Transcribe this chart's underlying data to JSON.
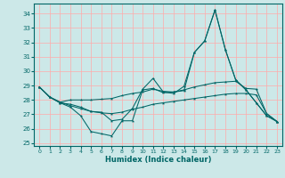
{
  "xlabel": "Humidex (Indice chaleur)",
  "background_color": "#cce8e8",
  "grid_color": "#ffaaaa",
  "line_color": "#006666",
  "x_values": [
    0,
    1,
    2,
    3,
    4,
    5,
    6,
    7,
    8,
    9,
    10,
    11,
    12,
    13,
    14,
    15,
    16,
    17,
    18,
    19,
    20,
    21,
    22,
    23
  ],
  "ylim": [
    24.8,
    34.7
  ],
  "yticks": [
    25,
    26,
    27,
    28,
    29,
    30,
    31,
    32,
    33,
    34
  ],
  "xlim": [
    -0.5,
    23.5
  ],
  "line1_sharp": [
    28.9,
    28.2,
    27.8,
    27.5,
    26.9,
    25.8,
    25.65,
    25.5,
    26.55,
    26.55,
    28.7,
    28.8,
    28.5,
    28.55,
    28.65,
    31.3,
    32.1,
    34.25,
    31.5,
    29.4,
    28.7,
    27.8,
    26.9,
    26.5
  ],
  "line2_mid": [
    28.9,
    28.2,
    27.8,
    27.7,
    27.5,
    27.2,
    27.15,
    26.55,
    26.65,
    27.4,
    28.75,
    29.5,
    28.55,
    28.45,
    28.95,
    31.3,
    32.1,
    34.25,
    31.5,
    29.4,
    28.7,
    27.8,
    26.9,
    26.5
  ],
  "line3_flat_high": [
    28.9,
    28.2,
    27.85,
    28.0,
    28.0,
    28.0,
    28.05,
    28.1,
    28.3,
    28.45,
    28.55,
    28.75,
    28.6,
    28.55,
    28.7,
    28.9,
    29.05,
    29.2,
    29.25,
    29.3,
    28.8,
    28.75,
    27.05,
    26.5
  ],
  "line4_flat_low": [
    28.9,
    28.2,
    27.85,
    27.6,
    27.4,
    27.2,
    27.1,
    27.05,
    27.15,
    27.35,
    27.5,
    27.7,
    27.8,
    27.9,
    28.0,
    28.1,
    28.2,
    28.3,
    28.4,
    28.45,
    28.45,
    28.35,
    27.05,
    26.5
  ]
}
